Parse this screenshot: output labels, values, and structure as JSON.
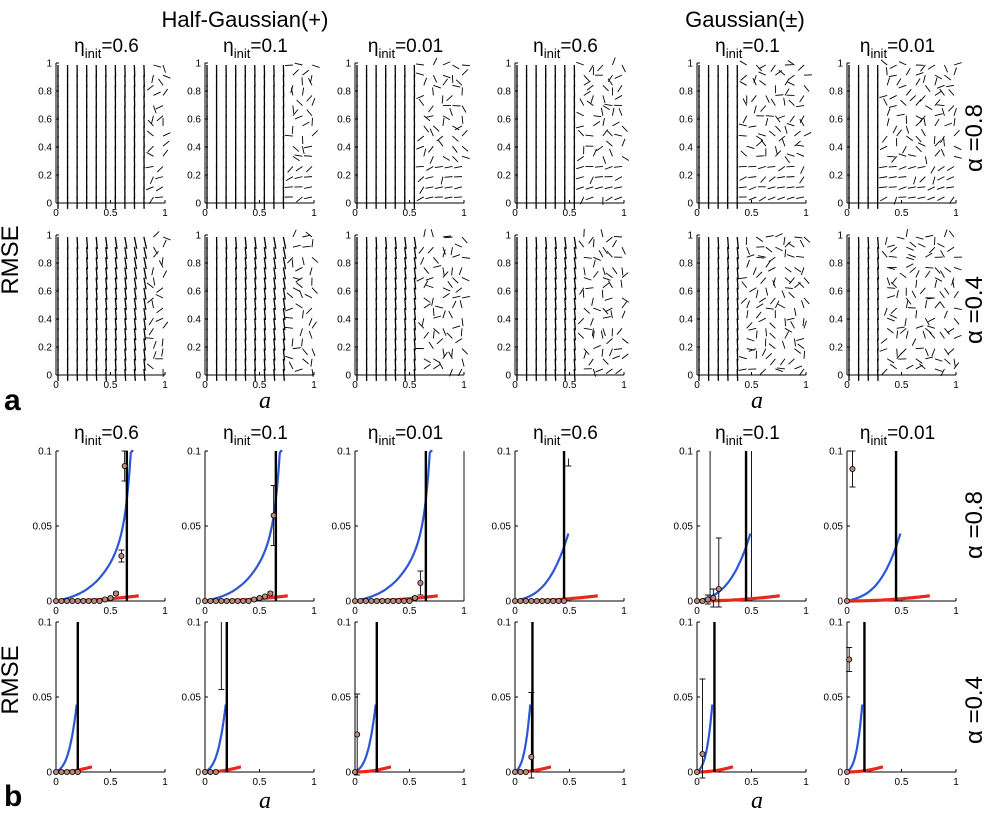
{
  "figure": {
    "section_titles": [
      "Half-Gaussian(+)",
      "Gaussian(±)"
    ],
    "eta_prefix": "η",
    "eta_sub": "init",
    "eta_values": [
      "=0.6",
      "=0.1",
      "=0.01"
    ],
    "alpha_labels": [
      "α =0.8",
      "α =0.4"
    ],
    "ylabel": "RMSE",
    "xlabel": "a",
    "panel_a": "a",
    "panel_b": "b"
  },
  "chart_data": [
    {
      "id": "a",
      "type": "quiver",
      "description_title": "Vector fields over (a, RMSE)",
      "xlim": [
        0,
        1
      ],
      "ylim": [
        0,
        1
      ],
      "xticks": [
        "0",
        "0.5",
        "1"
      ],
      "yticks": [
        "0",
        "0.2",
        "0.4",
        "0.6",
        "0.8",
        "1"
      ],
      "rows": [
        "α =0.8",
        "α =0.4"
      ],
      "columns": [
        {
          "group": "Half-Gaussian(+)",
          "eta": 0.6,
          "knee": 0.9
        },
        {
          "group": "Half-Gaussian(+)",
          "eta": 0.1,
          "knee": 0.75
        },
        {
          "group": "Half-Gaussian(+)",
          "eta": 0.01,
          "knee": 0.6
        },
        {
          "group": "Gaussian(±)",
          "eta": 0.6,
          "knee": 0.55
        },
        {
          "group": "Gaussian(±)",
          "eta": 0.1,
          "knee": 0.4
        },
        {
          "group": "Gaussian(±)",
          "eta": 0.01,
          "knee": 0.3
        }
      ]
    },
    {
      "id": "b",
      "type": "line",
      "xlim": [
        0,
        1
      ],
      "ylim": [
        0,
        0.1
      ],
      "xticks": [
        "0",
        "0.5",
        "1"
      ],
      "yticks": [
        "0",
        "0.05",
        "0.1"
      ],
      "rows": [
        "α =0.8",
        "α =0.4"
      ],
      "panels": [
        {
          "row": 0,
          "col": 0,
          "blue_end": 0.71,
          "red_end": 0.76,
          "vlines": [
            0.65
          ],
          "thin_vlines": [],
          "points": [
            [
              0,
              0
            ],
            [
              0.05,
              0
            ],
            [
              0.1,
              0
            ],
            [
              0.15,
              0
            ],
            [
              0.2,
              0
            ],
            [
              0.25,
              0
            ],
            [
              0.3,
              0
            ],
            [
              0.35,
              0
            ],
            [
              0.4,
              0
            ],
            [
              0.45,
              0.001
            ],
            [
              0.5,
              0.002
            ],
            [
              0.55,
              0.005
            ],
            [
              0.6,
              0.03
            ],
            [
              0.63,
              0.09
            ]
          ],
          "errs": [
            0,
            0,
            0,
            0,
            0,
            0,
            0,
            0,
            0,
            0,
            0,
            0.001,
            0.004,
            0.01
          ]
        },
        {
          "row": 0,
          "col": 1,
          "blue_end": 0.71,
          "red_end": 0.76,
          "vlines": [
            0.65
          ],
          "thin_vlines": [],
          "points": [
            [
              0,
              0
            ],
            [
              0.05,
              0
            ],
            [
              0.1,
              0
            ],
            [
              0.15,
              0
            ],
            [
              0.2,
              0
            ],
            [
              0.25,
              0
            ],
            [
              0.3,
              0
            ],
            [
              0.35,
              0
            ],
            [
              0.4,
              0
            ],
            [
              0.45,
              0.001
            ],
            [
              0.5,
              0.002
            ],
            [
              0.55,
              0.003
            ],
            [
              0.6,
              0.005
            ],
            [
              0.63,
              0.057
            ]
          ],
          "errs": [
            0,
            0,
            0,
            0,
            0,
            0,
            0,
            0,
            0,
            0,
            0,
            0,
            0.001,
            0.02
          ]
        },
        {
          "row": 0,
          "col": 2,
          "blue_end": 0.71,
          "red_end": 0.76,
          "vlines": [
            0.65
          ],
          "thin_vlines": [
            1.0
          ],
          "points": [
            [
              0,
              0
            ],
            [
              0.05,
              0
            ],
            [
              0.1,
              0
            ],
            [
              0.15,
              0
            ],
            [
              0.2,
              0
            ],
            [
              0.25,
              0
            ],
            [
              0.3,
              0
            ],
            [
              0.35,
              0
            ],
            [
              0.4,
              0
            ],
            [
              0.45,
              0
            ],
            [
              0.5,
              0
            ],
            [
              0.55,
              0.002
            ],
            [
              0.6,
              0.012
            ]
          ],
          "errs": [
            0,
            0,
            0,
            0,
            0,
            0,
            0,
            0,
            0,
            0,
            0,
            0.001,
            0.008
          ]
        },
        {
          "row": 0,
          "col": 3,
          "blue_end": 0.49,
          "red_end": 0.76,
          "vlines": [
            0.45
          ],
          "thin_vlines": [],
          "points": [
            [
              0,
              0
            ],
            [
              0.05,
              0
            ],
            [
              0.1,
              0
            ],
            [
              0.15,
              0
            ],
            [
              0.2,
              0
            ],
            [
              0.25,
              0
            ],
            [
              0.3,
              0
            ],
            [
              0.35,
              0
            ],
            [
              0.4,
              0
            ],
            [
              0.45,
              0
            ]
          ],
          "errs": [
            0,
            0,
            0,
            0,
            0,
            0,
            0,
            0,
            0,
            0
          ],
          "cap_only": [
            [
              0.49,
              0.095,
              0.005
            ]
          ]
        },
        {
          "row": 0,
          "col": 4,
          "blue_end": 0.49,
          "red_end": 0.76,
          "vlines": [
            0.45
          ],
          "thin_vlines": [
            0,
            0.12,
            0.5
          ],
          "points": [
            [
              0,
              0
            ],
            [
              0.05,
              0
            ],
            [
              0.1,
              0.001
            ],
            [
              0.15,
              0.002
            ],
            [
              0.2,
              0.008
            ]
          ],
          "errs": [
            0,
            0,
            0.003,
            0.006,
            0.034
          ]
        },
        {
          "row": 0,
          "col": 5,
          "blue_end": 0.49,
          "red_end": 0.76,
          "vlines": [
            0.45
          ],
          "thin_vlines": [],
          "points": [
            [
              0,
              0
            ],
            [
              0.05,
              0.088
            ]
          ],
          "errs": [
            0,
            0.012
          ]
        },
        {
          "row": 1,
          "col": 0,
          "blue_end": 0.19,
          "red_end": 0.33,
          "vlines": [
            0.2
          ],
          "thin_vlines": [],
          "points": [
            [
              0,
              0
            ],
            [
              0.05,
              0
            ],
            [
              0.1,
              0
            ],
            [
              0.15,
              0
            ],
            [
              0.2,
              0
            ]
          ],
          "errs": [
            0,
            0,
            0,
            0,
            0
          ]
        },
        {
          "row": 1,
          "col": 1,
          "blue_end": 0.19,
          "red_end": 0.33,
          "vlines": [
            0.2
          ],
          "thin_vlines": [],
          "points": [
            [
              0,
              0
            ],
            [
              0.05,
              0
            ],
            [
              0.1,
              0
            ]
          ],
          "errs": [
            0,
            0,
            0
          ],
          "cap_only": [
            [
              0.15,
              0.1,
              0.045
            ]
          ]
        },
        {
          "row": 1,
          "col": 2,
          "blue_end": 0.19,
          "red_end": 0.33,
          "vlines": [
            0.2
          ],
          "thin_vlines": [],
          "points": [
            [
              0,
              0
            ],
            [
              0.02,
              0.025
            ]
          ],
          "errs": [
            0,
            0.027
          ]
        },
        {
          "row": 1,
          "col": 3,
          "blue_end": 0.14,
          "red_end": 0.33,
          "vlines": [
            0.16
          ],
          "thin_vlines": [],
          "points": [
            [
              0,
              0
            ],
            [
              0.05,
              0
            ],
            [
              0.1,
              0
            ],
            [
              0.15,
              0.01
            ]
          ],
          "errs": [
            0,
            0,
            0,
            0.043
          ]
        },
        {
          "row": 1,
          "col": 4,
          "blue_end": 0.14,
          "red_end": 0.33,
          "vlines": [
            0.16
          ],
          "thin_vlines": [],
          "points": [
            [
              0,
              0
            ],
            [
              0.05,
              0.012
            ]
          ],
          "errs": [
            0,
            0.05
          ]
        },
        {
          "row": 1,
          "col": 5,
          "blue_end": 0.14,
          "red_end": 0.33,
          "vlines": [
            0.16
          ],
          "thin_vlines": [],
          "points": [
            [
              0,
              0
            ],
            [
              0.02,
              0.075
            ]
          ],
          "errs": [
            0,
            0.008
          ]
        }
      ],
      "colors": {
        "blue": "#2b56d6",
        "red": "#e8281e",
        "black": "#000000"
      }
    }
  ]
}
